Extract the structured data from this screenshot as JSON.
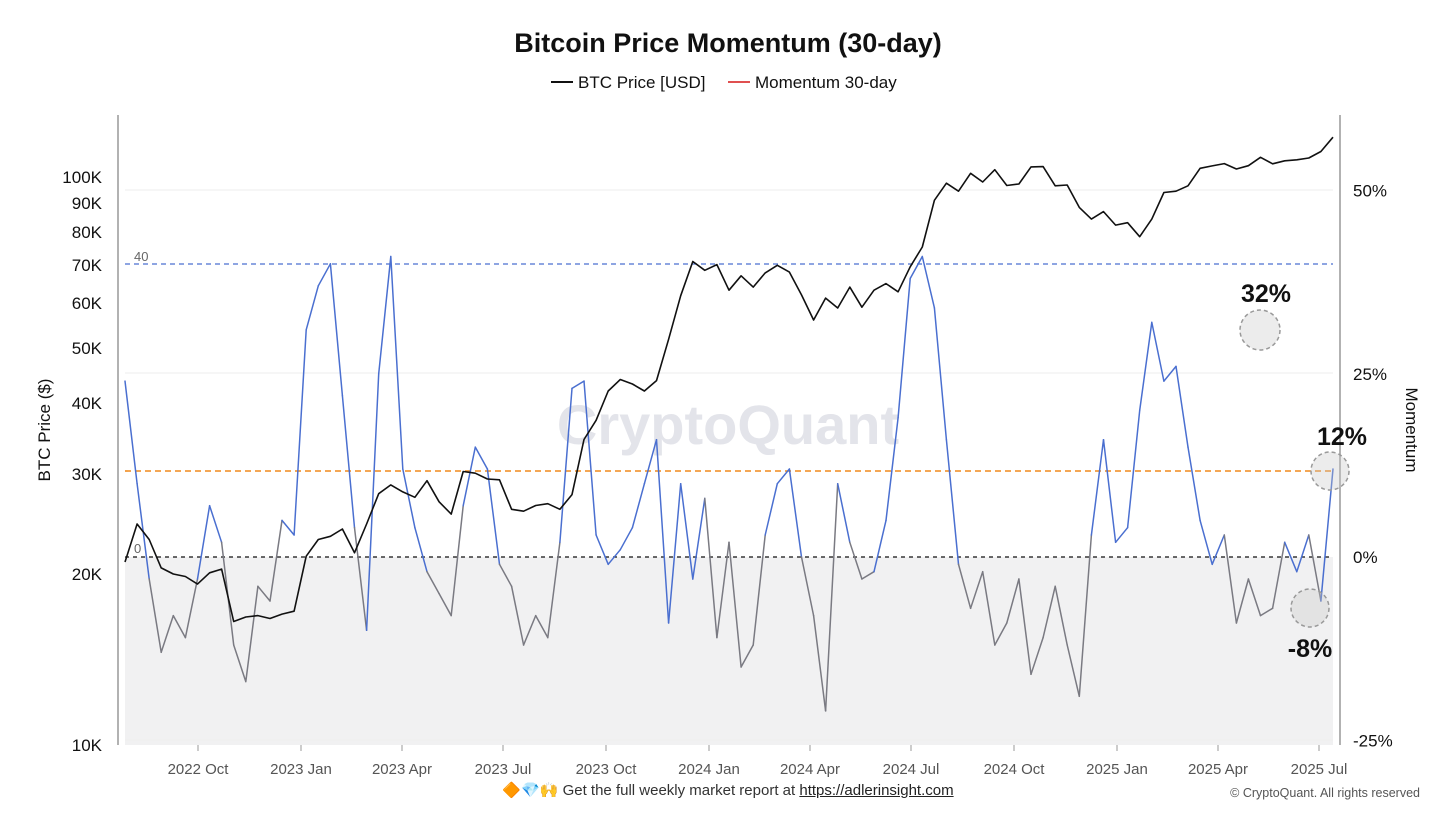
{
  "chart_data": {
    "type": "line",
    "title": "Bitcoin Price Momentum (30-day)",
    "legend": [
      {
        "name": "BTC Price [USD]",
        "color": "#111111"
      },
      {
        "name": "Momentum 30-day",
        "color": "#e05050"
      }
    ],
    "ylabel_left": "BTC Price ($)",
    "ylabel_right": "Momentum",
    "left_scale": "log",
    "ylim_left": [
      10000,
      140000
    ],
    "ylim_right_pct": [
      -25,
      58
    ],
    "left_ticks": [
      {
        "value": 10000,
        "label": "10K"
      },
      {
        "value": 20000,
        "label": "20K"
      },
      {
        "value": 30000,
        "label": "30K"
      },
      {
        "value": 40000,
        "label": "40K"
      },
      {
        "value": 50000,
        "label": "50K"
      },
      {
        "value": 60000,
        "label": "60K"
      },
      {
        "value": 70000,
        "label": "70K"
      },
      {
        "value": 80000,
        "label": "80K"
      },
      {
        "value": 90000,
        "label": "90K"
      },
      {
        "value": 100000,
        "label": "100K"
      }
    ],
    "right_ticks": [
      {
        "value": 50,
        "label": "50%"
      },
      {
        "value": 25,
        "label": "25%"
      },
      {
        "value": 0,
        "label": "0%"
      },
      {
        "value": -25,
        "label": "-25%"
      }
    ],
    "x_ticks": [
      "2022 Oct",
      "2023 Jan",
      "2023 Apr",
      "2023 Jul",
      "2023 Oct",
      "2024 Jan",
      "2024 Apr",
      "2024 Jul",
      "2024 Oct",
      "2025 Jan",
      "2025 Apr",
      "2025 Jul"
    ],
    "x_start": "2022 Jul",
    "reference_lines": [
      {
        "label": "40",
        "value_pct": 40,
        "color": "#4a6fd0",
        "style": "dashed"
      },
      {
        "label": "0",
        "value_pct": 0,
        "color": "#111111",
        "style": "dashed"
      },
      {
        "label": "",
        "value_pct": 11.7,
        "color": "#f08a1c",
        "style": "dashed"
      }
    ],
    "colors": {
      "momentum_high": "#e05050",
      "momentum_positive": "#4a6fd0",
      "momentum_negative": "#7a7a82",
      "price": "#111111",
      "negative_zone": "#f1f1f2"
    },
    "annotations": [
      {
        "text": "32%",
        "value_pct": 32
      },
      {
        "text": "12%",
        "value_pct": 12
      },
      {
        "text": "-8%",
        "value_pct": -8
      }
    ],
    "series": [
      {
        "name": "BTC Price [USD]",
        "t": [
          0,
          1,
          2,
          3,
          4,
          5,
          6,
          7,
          8,
          9,
          10,
          11,
          12,
          13,
          14,
          15,
          16,
          17,
          18,
          19,
          20,
          21,
          22,
          23,
          24,
          25,
          26,
          27,
          28,
          29,
          30,
          31,
          32,
          33,
          34,
          35,
          36
        ],
        "values": [
          21000,
          24500,
          23000,
          20500,
          20000,
          19800,
          19200,
          20100,
          20400,
          16500,
          16800,
          16900,
          16700,
          17000,
          17200,
          21500,
          23000,
          23300,
          24000,
          21800,
          24500,
          27700,
          28700,
          27900,
          27300,
          29200,
          26800,
          25500,
          30300,
          30100,
          29400,
          29300,
          26000,
          25800,
          26400,
          26600,
          26000
        ]
      },
      {
        "name": "BTC Price [USD] (cont.)",
        "t": [
          37,
          38,
          39,
          40,
          41,
          42,
          43,
          44,
          45,
          46,
          47,
          48,
          49,
          50,
          51,
          52,
          53,
          54,
          55,
          56,
          57,
          58,
          59,
          60,
          61,
          62,
          63,
          64,
          65,
          66,
          67,
          68,
          69,
          70,
          71,
          72,
          73,
          74,
          75,
          76
        ],
        "values": [
          27600,
          34500,
          37300,
          42000,
          44000,
          43200,
          42000,
          43800,
          51800,
          61800,
          71000,
          68500,
          70100,
          63200,
          67000,
          64000,
          67800,
          69900,
          68000,
          62000,
          56000,
          61200,
          58800,
          64000,
          59000,
          63200,
          64900,
          62800,
          69500,
          75300,
          91000,
          97500,
          94400,
          101500,
          98000,
          103000,
          96600,
          97200,
          104200,
          104300
        ]
      },
      {
        "name": "BTC Price [USD] (end)",
        "t": [
          77,
          78,
          79,
          80,
          81,
          82,
          83,
          84,
          85,
          86,
          87,
          88,
          89,
          90,
          91,
          92,
          93,
          94,
          95,
          96,
          97,
          98,
          99,
          100
        ],
        "values": [
          96500,
          96800,
          88400,
          84300,
          86900,
          82300,
          83100,
          78500,
          84300,
          93900,
          94400,
          96500,
          103600,
          104600,
          105600,
          103300,
          104700,
          108300,
          105500,
          106800,
          107200,
          108000,
          110900,
          117500
        ]
      },
      {
        "name": "Momentum 30-day",
        "t": [
          0,
          1,
          2,
          3,
          4,
          5,
          6,
          7,
          8,
          9,
          10,
          11,
          12,
          13,
          14,
          15,
          16,
          17,
          18,
          19,
          20,
          21,
          22,
          23,
          24,
          25,
          26,
          27,
          28,
          29,
          30,
          31,
          32,
          33,
          34,
          35,
          36,
          37,
          38,
          39,
          40,
          41,
          42,
          43,
          44,
          45,
          46,
          47,
          48,
          49,
          50,
          51,
          52,
          53,
          54,
          55,
          56,
          57,
          58,
          59,
          60,
          61,
          62,
          63,
          64,
          65,
          66,
          67,
          68,
          69,
          70,
          71,
          72,
          73,
          74,
          75,
          76,
          77,
          78,
          79,
          80,
          81,
          82,
          83,
          84,
          85,
          86,
          87,
          88,
          89,
          90,
          91,
          92,
          93,
          94,
          95,
          96,
          97,
          98,
          99,
          100
        ],
        "values": [
          24,
          10,
          -3,
          -13,
          -8,
          -11,
          -3,
          7,
          2,
          -12,
          -17,
          -4,
          -6,
          5,
          3,
          31,
          37,
          40,
          22,
          4,
          -10,
          25,
          41,
          12,
          4,
          -2,
          -5,
          -8,
          7,
          15,
          12,
          -1,
          -4,
          -12,
          -8,
          -11,
          2,
          23,
          24,
          3,
          -1,
          1,
          4,
          10,
          16,
          -9,
          10,
          -3,
          8,
          -11,
          2,
          -15,
          -12,
          3,
          10,
          12,
          0,
          -8,
          -21,
          10,
          2,
          -3,
          -2,
          5,
          19,
          38,
          41,
          34,
          16,
          -1,
          -7,
          -2,
          -12,
          -9,
          -3,
          -16,
          -11,
          -4,
          -12,
          -19,
          3,
          16,
          2,
          4,
          20,
          32,
          24,
          26,
          15,
          5,
          -1,
          3,
          -9,
          -3,
          -8,
          -7,
          2,
          -2,
          3,
          -6,
          12
        ]
      }
    ]
  },
  "watermark": "CryptoQuant",
  "footer": {
    "emoji": "🔶💎🙌",
    "text": "Get the full weekly market report at",
    "link": "https://adlerinsight.com"
  },
  "copyright": "© CryptoQuant. All rights reserved"
}
